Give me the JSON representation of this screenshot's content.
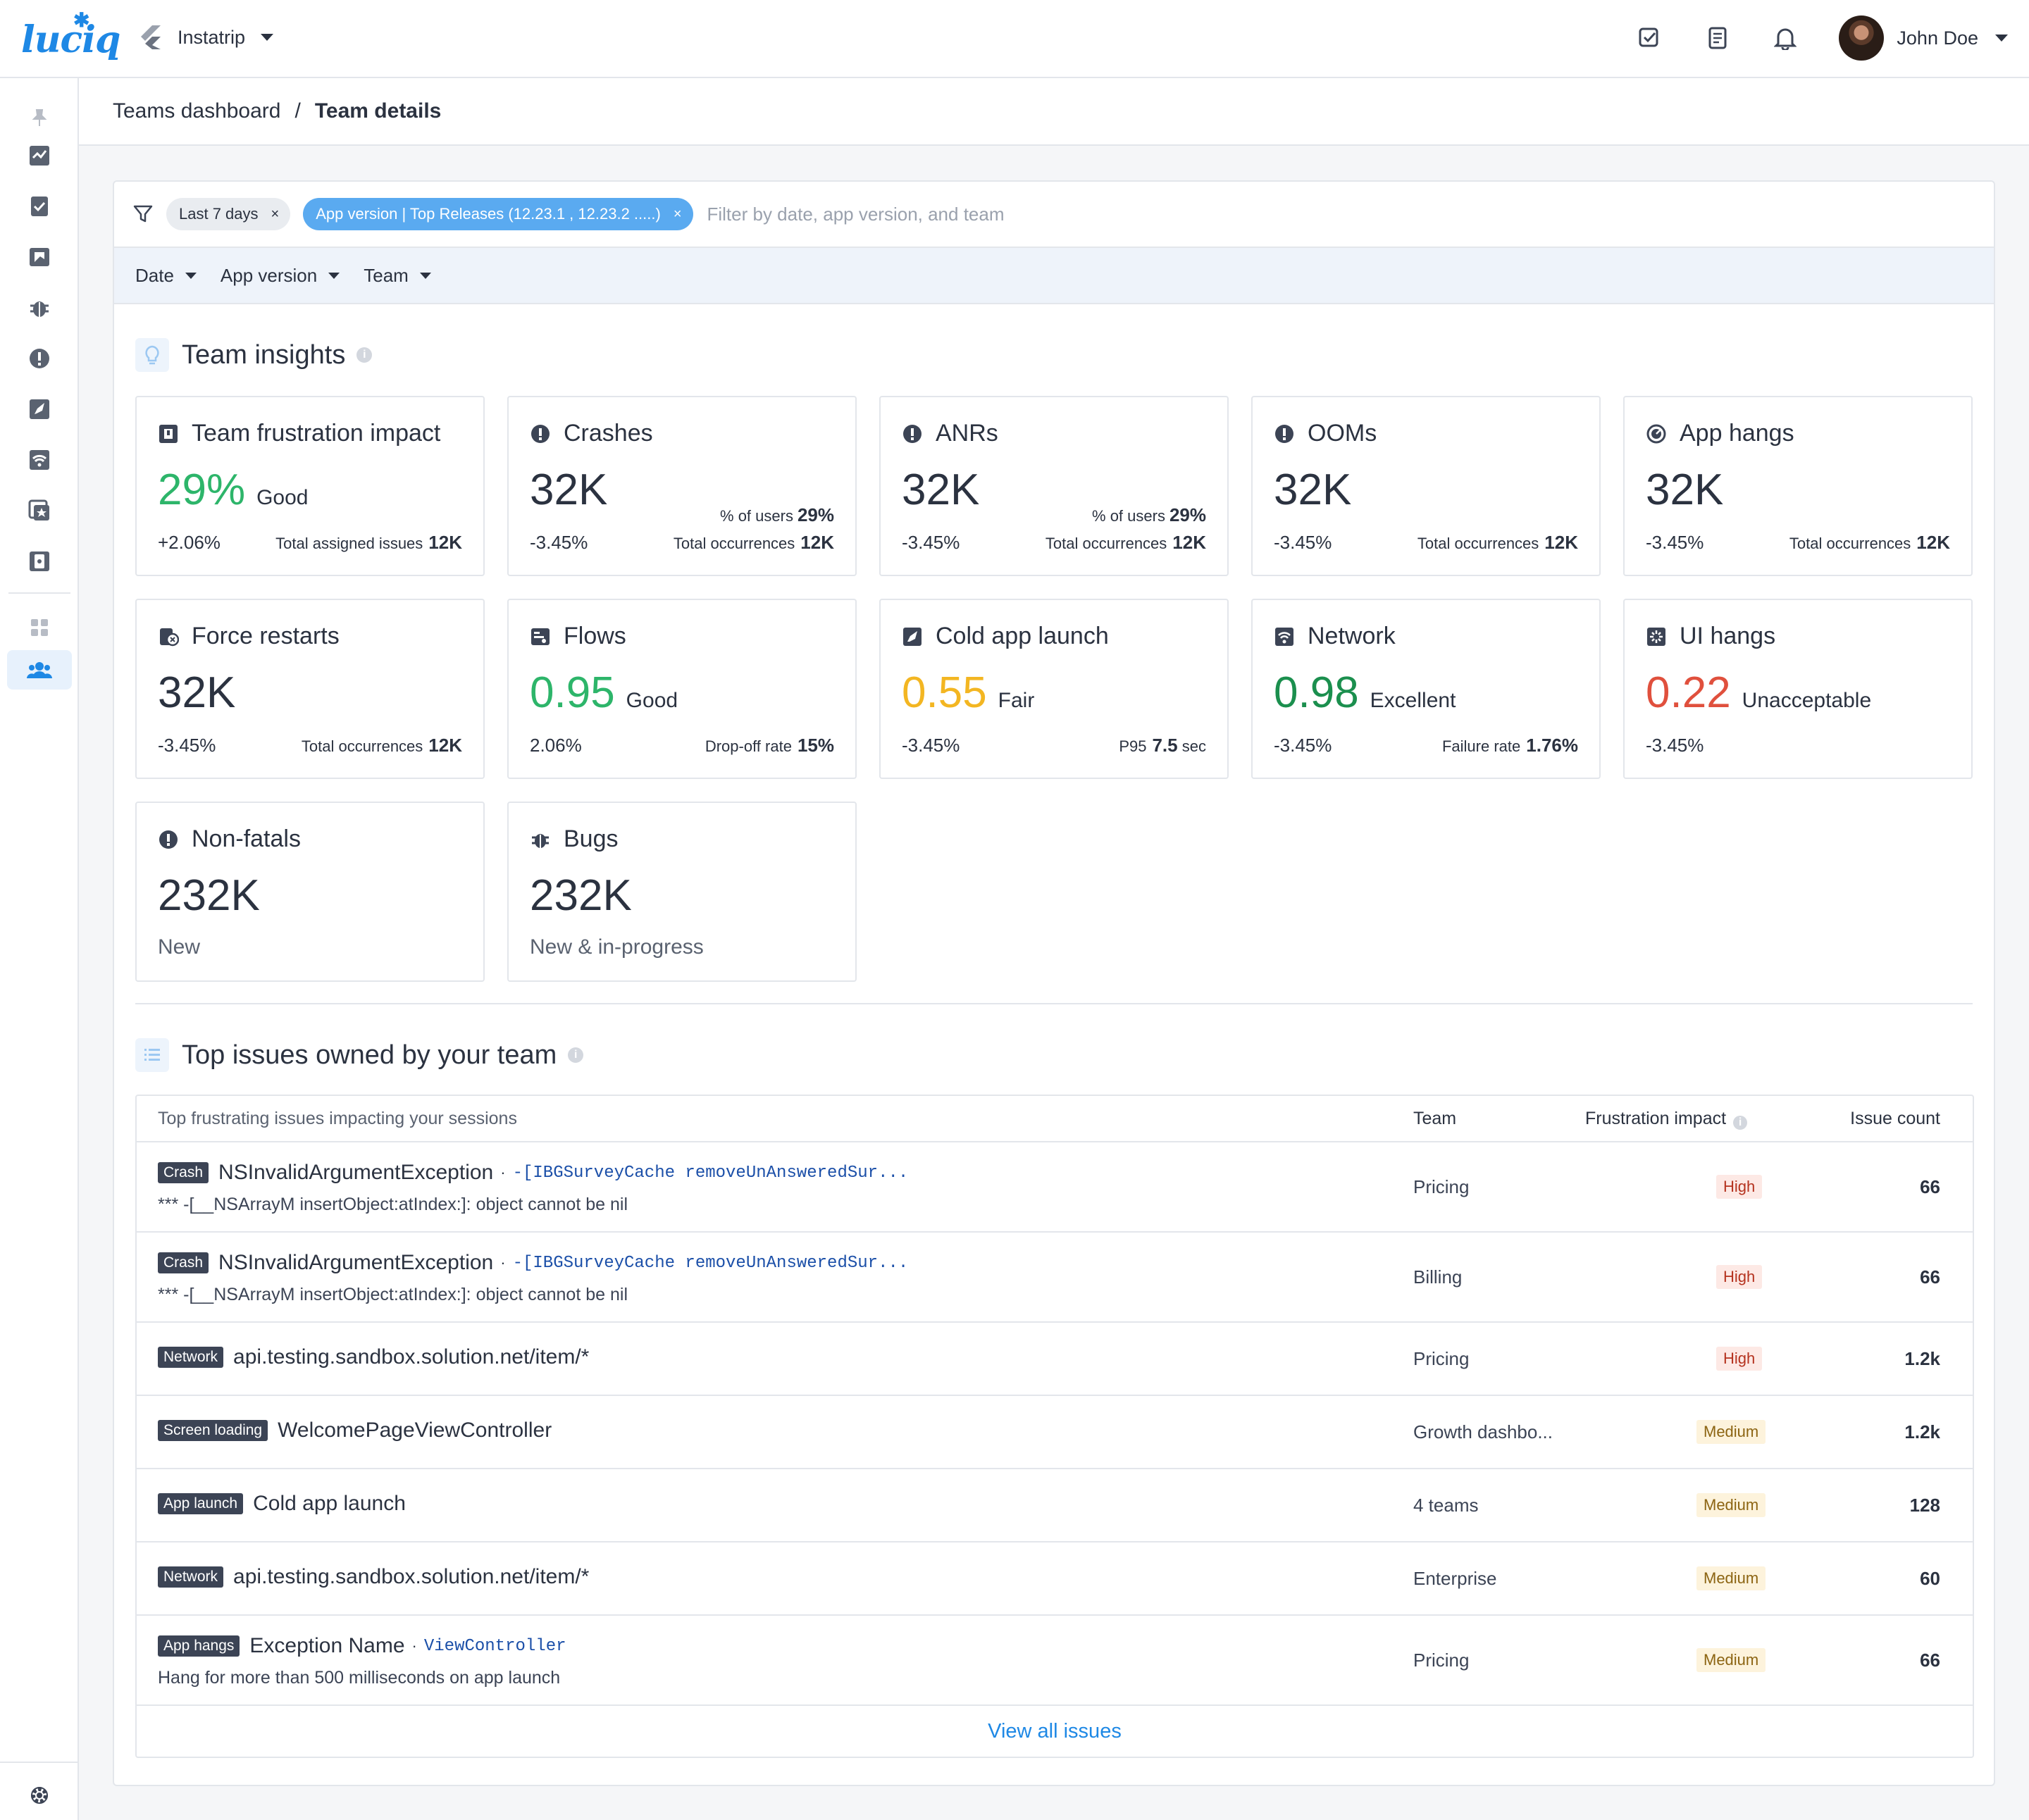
{
  "topbar": {
    "logo": "luciq",
    "app_name": "Instatrip",
    "user_name": "John Doe"
  },
  "breadcrumb": {
    "parent": "Teams dashboard",
    "separator": "/",
    "current": "Team details"
  },
  "filters": {
    "chip_date": "Last 7 days",
    "chip_version": "App version | Top Releases (12.23.1 , 12.23.2 .....)",
    "chip_close": "×",
    "placeholder": "Filter by date, app version, and team",
    "dropdowns": [
      "Date",
      "App version",
      "Team"
    ]
  },
  "insights": {
    "title": "Team insights",
    "cards": [
      {
        "title": "Team frustration impact",
        "value": "29%",
        "status": "Good",
        "delta": "+2.06%",
        "foot_label": "Total assigned issues",
        "foot_value": "12K"
      },
      {
        "title": "Crashes",
        "value": "32K",
        "side_label": "% of users",
        "side_value": "29%",
        "delta": "-3.45%",
        "foot_label": "Total occurrences",
        "foot_value": "12K"
      },
      {
        "title": "ANRs",
        "value": "32K",
        "side_label": "% of users",
        "side_value": "29%",
        "delta": "-3.45%",
        "foot_label": "Total occurrences",
        "foot_value": "12K"
      },
      {
        "title": "OOMs",
        "value": "32K",
        "delta": "-3.45%",
        "foot_label": "Total occurrences",
        "foot_value": "12K"
      },
      {
        "title": "App hangs",
        "value": "32K",
        "delta": "-3.45%",
        "foot_label": "Total occurrences",
        "foot_value": "12K"
      },
      {
        "title": "Force restarts",
        "value": "32K",
        "delta": "-3.45%",
        "foot_label": "Total occurrences",
        "foot_value": "12K"
      },
      {
        "title": "Flows",
        "value": "0.95",
        "status": "Good",
        "delta": "2.06%",
        "foot_label": "Drop-off rate",
        "foot_value": "15%"
      },
      {
        "title": "Cold app launch",
        "value": "0.55",
        "status": "Fair",
        "delta": "-3.45%",
        "foot_label": "P95",
        "foot_value": "7.5",
        "foot_unit": "sec"
      },
      {
        "title": "Network",
        "value": "0.98",
        "status": "Excellent",
        "delta": "-3.45%",
        "foot_label": "Failure rate",
        "foot_value": "1.76%"
      },
      {
        "title": "UI hangs",
        "value": "0.22",
        "status": "Unacceptable",
        "delta": "-3.45%"
      },
      {
        "title": "Non-fatals",
        "value": "232K",
        "sub": "New"
      },
      {
        "title": "Bugs",
        "value": "232K",
        "sub": "New & in-progress"
      }
    ],
    "colors": {
      "good": "#2db56a",
      "excellent": "#1b8f4e",
      "fair": "#f3b622",
      "unacceptable": "#e0503d"
    }
  },
  "issues": {
    "title": "Top issues owned by your team",
    "headers": {
      "issue": "Top frustrating issues impacting your sessions",
      "team": "Team",
      "impact": "Frustration impact",
      "count": "Issue count"
    },
    "rows": [
      {
        "tag": "Crash",
        "name": "NSInvalidArgumentException",
        "dot": "·",
        "code": "-[IBGSurveyCache removeUnAnsweredSur...",
        "desc": "*** -[__NSArrayM insertObject:atIndex:]: object cannot be nil",
        "team": "Pricing",
        "impact": "High",
        "count": "66"
      },
      {
        "tag": "Crash",
        "name": "NSInvalidArgumentException",
        "dot": "·",
        "code": "-[IBGSurveyCache removeUnAnsweredSur...",
        "desc": "*** -[__NSArrayM insertObject:atIndex:]: object cannot be nil",
        "team": "Billing",
        "impact": "High",
        "count": "66"
      },
      {
        "tag": "Network",
        "name": "api.testing.sandbox.solution.net/item/*",
        "team": "Pricing",
        "impact": "High",
        "count": "1.2k"
      },
      {
        "tag": "Screen loading",
        "name": "WelcomePageViewController",
        "team": "Growth dashbo...",
        "impact": "Medium",
        "count": "1.2k"
      },
      {
        "tag": "App launch",
        "name": "Cold app launch",
        "team": "4 teams",
        "impact": "Medium",
        "count": "128"
      },
      {
        "tag": "Network",
        "name": "api.testing.sandbox.solution.net/item/*",
        "team": "Enterprise",
        "impact": "Medium",
        "count": "60"
      },
      {
        "tag": "App hangs",
        "name": "Exception Name",
        "dot": "·",
        "code": "ViewController",
        "desc": "Hang for more than 500 milliseconds on app launch",
        "team": "Pricing",
        "impact": "Medium",
        "count": "66"
      }
    ],
    "view_all": "View all issues"
  },
  "accent": "#1e88e5"
}
